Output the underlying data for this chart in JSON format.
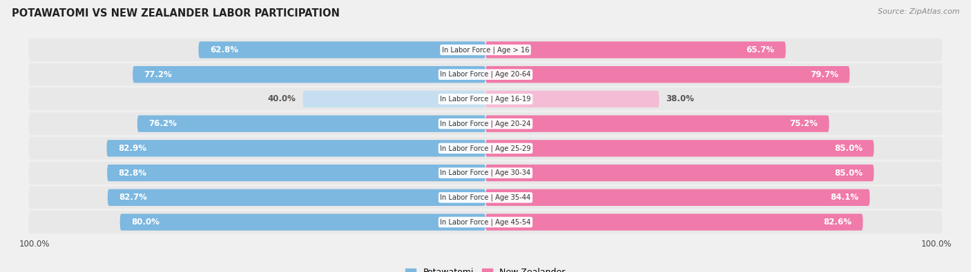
{
  "title": "POTAWATOMI VS NEW ZEALANDER LABOR PARTICIPATION",
  "source": "Source: ZipAtlas.com",
  "categories": [
    "In Labor Force | Age > 16",
    "In Labor Force | Age 20-64",
    "In Labor Force | Age 16-19",
    "In Labor Force | Age 20-24",
    "In Labor Force | Age 25-29",
    "In Labor Force | Age 30-34",
    "In Labor Force | Age 35-44",
    "In Labor Force | Age 45-54"
  ],
  "potawatomi": [
    62.8,
    77.2,
    40.0,
    76.2,
    82.9,
    82.8,
    82.7,
    80.0
  ],
  "new_zealander": [
    65.7,
    79.7,
    38.0,
    75.2,
    85.0,
    85.0,
    84.1,
    82.6
  ],
  "potawatomi_color": "#7cb8e0",
  "potawatomi_color_light": "#c5dff0",
  "new_zealander_color": "#f07aaa",
  "new_zealander_color_light": "#f5bcd5",
  "background_color": "#f0f0f0",
  "row_bg_color": "#e0e0e0",
  "bar_bg_color": "#f8f8f8",
  "max_value": 100.0,
  "legend_potawatomi": "Potawatomi",
  "legend_new_zealander": "New Zealander",
  "threshold_dark": 50.0
}
